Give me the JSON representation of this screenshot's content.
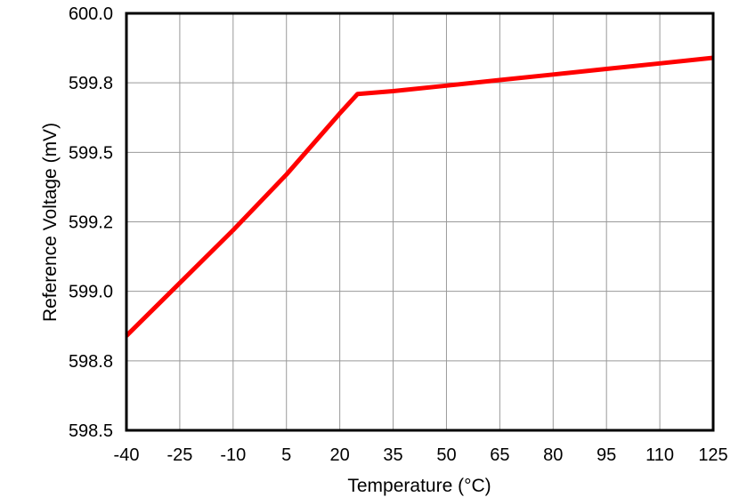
{
  "chart_data": {
    "type": "line",
    "title": "",
    "xlabel": "Temperature (°C)",
    "ylabel": "Reference Voltage (mV)",
    "xlim": [
      -40,
      125
    ],
    "ylim": [
      598.5,
      600.0
    ],
    "grid": true,
    "legend": null,
    "x_ticks": [
      -40,
      -25,
      -10,
      5,
      20,
      35,
      50,
      65,
      80,
      95,
      110,
      125
    ],
    "x_tick_labels": [
      "-40",
      "-25",
      "-10",
      "5",
      "20",
      "35",
      "50",
      "65",
      "80",
      "95",
      "110",
      "125"
    ],
    "y_ticks": [
      598.5,
      598.75,
      599.0,
      599.25,
      599.5,
      599.75,
      600.0
    ],
    "y_tick_labels": [
      "598.5",
      "598.8",
      "599.0",
      "599.2",
      "599.5",
      "599.8",
      "600.0"
    ],
    "series": [
      {
        "name": "Reference Voltage",
        "color": "#ff0000",
        "x": [
          -40,
          -25,
          -10,
          5,
          20,
          25,
          35,
          50,
          65,
          80,
          95,
          110,
          125
        ],
        "y": [
          598.84,
          599.03,
          599.22,
          599.42,
          599.64,
          599.71,
          599.72,
          599.74,
          599.76,
          599.78,
          599.8,
          599.82,
          599.84
        ]
      }
    ]
  },
  "colors": {
    "line": "#ff0000",
    "grid": "#999999",
    "frame": "#000000"
  }
}
